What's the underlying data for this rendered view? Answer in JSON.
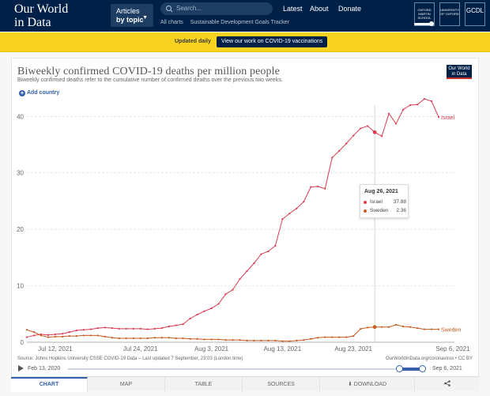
{
  "header": {
    "logo_line1": "Our World",
    "logo_line2": "in Data",
    "topics_line1": "Articles",
    "topics_line2": "by topic",
    "search_placeholder": "Search...",
    "sub_links": [
      "All charts",
      "Sustainable Development Goals Tracker"
    ],
    "nav": [
      "Latest",
      "About",
      "Donate"
    ],
    "partners": [
      "OXFORD MARTIN SCHOOL",
      "UNIVERSITY OF OXFORD",
      "GCDL"
    ]
  },
  "banner": {
    "label": "Updated daily",
    "button": "View our work on COVID-19 vaccinations"
  },
  "chart": {
    "title": "Biweekly confirmed COVID-19 deaths per million people",
    "subtitle": "Biweekly confirmed deaths refer to the cumulative number of confirmed deaths over the previous two weeks.",
    "badge_line1": "Our World",
    "badge_line2": "in Data",
    "add_country": "Add country"
  },
  "chart_data": {
    "type": "line",
    "x_ticks": [
      "Jul 12, 2021",
      "Jul 24, 2021",
      "Aug 3, 2021",
      "Aug 13, 2021",
      "Aug 23, 2021",
      "Sep 6, 2021"
    ],
    "y_ticks": [
      0,
      10,
      20,
      30,
      40
    ],
    "ylim": [
      0,
      42
    ],
    "grid": true,
    "x_start": "2021-07-08",
    "series": [
      {
        "name": "Israel",
        "color": "#d73c50",
        "values": [
          0.9,
          1.2,
          1.4,
          1.3,
          1.4,
          1.5,
          1.8,
          2.1,
          2.2,
          2.3,
          2.5,
          2.6,
          2.5,
          2.4,
          2.4,
          2.4,
          2.4,
          2.3,
          2.4,
          2.5,
          2.8,
          3.0,
          3.2,
          4.2,
          4.9,
          5.5,
          6.0,
          6.8,
          8.5,
          9.3,
          11.2,
          12.6,
          14.0,
          15.6,
          16.1,
          17.1,
          21.8,
          22.8,
          23.7,
          24.9,
          27.5,
          27.6,
          27.2,
          32.7,
          33.9,
          35.2,
          36.6,
          37.88,
          38.3,
          37.2,
          36.5,
          40.5,
          38.7,
          41.2,
          42.0,
          42.1,
          43.1,
          42.7,
          39.9
        ]
      },
      {
        "name": "Sweden",
        "color": "#c65b21",
        "values": [
          2.2,
          1.8,
          1.2,
          0.9,
          1.0,
          1.0,
          1.1,
          1.1,
          1.2,
          1.2,
          1.2,
          1.0,
          0.8,
          0.7,
          0.7,
          0.7,
          0.7,
          0.7,
          0.8,
          0.8,
          0.8,
          0.7,
          0.7,
          0.6,
          0.6,
          0.5,
          0.5,
          0.5,
          0.4,
          0.4,
          0.4,
          0.3,
          0.3,
          0.3,
          0.3,
          0.3,
          0.2,
          0.2,
          0.3,
          0.4,
          0.6,
          0.8,
          0.9,
          0.9,
          0.9,
          0.9,
          1.1,
          2.36,
          2.6,
          2.7,
          2.7,
          2.7,
          3.1,
          2.8,
          2.7,
          2.5,
          2.3,
          2.3,
          2.3
        ]
      }
    ]
  },
  "tooltip": {
    "date": "Aug 26, 2021",
    "rows": [
      {
        "name": "Israel",
        "value": "37.88"
      },
      {
        "name": "Sweden",
        "value": "2.36"
      }
    ]
  },
  "footer": {
    "source": "Source: Johns Hopkins University CSSE COVID-19 Data – Last updated 7 September, 23:03 (London time)",
    "license": "OurWorldInData.org/coronavirus • CC BY",
    "timeline_start": "Feb 13, 2020",
    "timeline_end": "Sep 6, 2021",
    "tabs": [
      "CHART",
      "MAP",
      "TABLE",
      "SOURCES",
      "DOWNLOAD"
    ]
  }
}
